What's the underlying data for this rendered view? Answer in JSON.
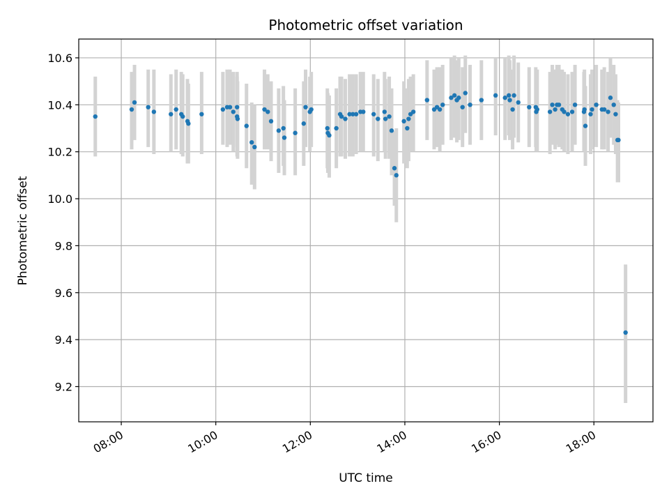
{
  "chart_data": {
    "type": "scatter",
    "title": "Photometric offset variation",
    "xlabel": "UTC time",
    "ylabel": "Photometric offset",
    "x_unit": "hours",
    "xlim": [
      7.1,
      19.25
    ],
    "ylim": [
      9.05,
      10.68
    ],
    "grid": true,
    "x_ticks": [
      {
        "value": 8,
        "label": "08:00"
      },
      {
        "value": 10,
        "label": "10:00"
      },
      {
        "value": 12,
        "label": "12:00"
      },
      {
        "value": 14,
        "label": "14:00"
      },
      {
        "value": 16,
        "label": "16:00"
      },
      {
        "value": 18,
        "label": "18:00"
      }
    ],
    "y_ticks": [
      {
        "value": 9.2,
        "label": "9.2"
      },
      {
        "value": 9.4,
        "label": "9.4"
      },
      {
        "value": 9.6,
        "label": "9.6"
      },
      {
        "value": 9.8,
        "label": "9.8"
      },
      {
        "value": 10.0,
        "label": "10.0"
      },
      {
        "value": 10.2,
        "label": "10.2"
      },
      {
        "value": 10.4,
        "label": "10.4"
      },
      {
        "value": 10.6,
        "label": "10.6"
      }
    ],
    "colors": {
      "point": "#1f77b4",
      "errorbar": "#d3d3d3",
      "grid": "#b0b0b0"
    },
    "series": [
      {
        "points": [
          [
            7.45,
            10.35,
            10.18,
            10.52
          ],
          [
            8.22,
            10.38,
            10.21,
            10.54
          ],
          [
            8.28,
            10.41,
            10.25,
            10.57
          ],
          [
            8.57,
            10.39,
            10.22,
            10.55
          ],
          [
            8.69,
            10.37,
            10.19,
            10.55
          ],
          [
            9.05,
            10.36,
            10.2,
            10.53
          ],
          [
            9.16,
            10.38,
            10.21,
            10.55
          ],
          [
            9.27,
            10.36,
            10.19,
            10.54
          ],
          [
            9.3,
            10.35,
            10.18,
            10.53
          ],
          [
            9.4,
            10.33,
            10.15,
            10.51
          ],
          [
            9.42,
            10.32,
            10.15,
            10.49
          ],
          [
            9.7,
            10.36,
            10.19,
            10.54
          ],
          [
            10.15,
            10.38,
            10.23,
            10.54
          ],
          [
            10.24,
            10.39,
            10.22,
            10.55
          ],
          [
            10.3,
            10.39,
            10.23,
            10.55
          ],
          [
            10.37,
            10.37,
            10.2,
            10.54
          ],
          [
            10.45,
            10.39,
            10.22,
            10.54
          ],
          [
            10.45,
            10.35,
            10.18,
            10.52
          ],
          [
            10.46,
            10.34,
            10.17,
            10.5
          ],
          [
            10.65,
            10.31,
            10.13,
            10.49
          ],
          [
            10.76,
            10.24,
            10.06,
            10.41
          ],
          [
            10.82,
            10.22,
            10.04,
            10.4
          ],
          [
            11.03,
            10.38,
            10.21,
            10.55
          ],
          [
            11.1,
            10.37,
            10.21,
            10.53
          ],
          [
            11.17,
            10.33,
            10.16,
            10.5
          ],
          [
            11.33,
            10.29,
            10.11,
            10.47
          ],
          [
            11.43,
            10.3,
            10.14,
            10.48
          ],
          [
            11.45,
            10.26,
            10.1,
            10.42
          ],
          [
            11.68,
            10.28,
            10.1,
            10.47
          ],
          [
            11.86,
            10.32,
            10.14,
            10.5
          ],
          [
            11.9,
            10.39,
            10.22,
            10.55
          ],
          [
            11.99,
            10.37,
            10.2,
            10.52
          ],
          [
            12.02,
            10.38,
            10.22,
            10.54
          ],
          [
            12.36,
            10.3,
            10.13,
            10.47
          ],
          [
            12.37,
            10.28,
            10.11,
            10.45
          ],
          [
            12.4,
            10.27,
            10.09,
            10.44
          ],
          [
            12.55,
            10.3,
            10.13,
            10.47
          ],
          [
            12.63,
            10.36,
            10.18,
            10.52
          ],
          [
            12.66,
            10.35,
            10.18,
            10.52
          ],
          [
            12.74,
            10.34,
            10.17,
            10.51
          ],
          [
            12.83,
            10.36,
            10.18,
            10.53
          ],
          [
            12.9,
            10.36,
            10.18,
            10.53
          ],
          [
            12.97,
            10.36,
            10.19,
            10.53
          ],
          [
            13.06,
            10.37,
            10.2,
            10.54
          ],
          [
            13.12,
            10.37,
            10.2,
            10.54
          ],
          [
            13.34,
            10.36,
            10.18,
            10.53
          ],
          [
            13.43,
            10.34,
            10.16,
            10.51
          ],
          [
            13.57,
            10.37,
            10.2,
            10.54
          ],
          [
            13.59,
            10.34,
            10.17,
            10.51
          ],
          [
            13.67,
            10.35,
            10.17,
            10.52
          ],
          [
            13.72,
            10.29,
            10.1,
            10.47
          ],
          [
            13.78,
            10.13,
            9.97,
            10.29
          ],
          [
            13.82,
            10.1,
            9.9,
            10.3
          ],
          [
            13.98,
            10.33,
            10.15,
            10.5
          ],
          [
            14.05,
            10.3,
            10.13,
            10.47
          ],
          [
            14.08,
            10.34,
            10.16,
            10.51
          ],
          [
            14.12,
            10.36,
            10.2,
            10.52
          ],
          [
            14.18,
            10.37,
            10.2,
            10.53
          ],
          [
            14.47,
            10.42,
            10.25,
            10.59
          ],
          [
            14.62,
            10.38,
            10.21,
            10.55
          ],
          [
            14.68,
            10.39,
            10.22,
            10.56
          ],
          [
            14.74,
            10.38,
            10.2,
            10.56
          ],
          [
            14.8,
            10.4,
            10.23,
            10.57
          ],
          [
            14.98,
            10.43,
            10.25,
            10.6
          ],
          [
            15.05,
            10.44,
            10.26,
            10.61
          ],
          [
            15.1,
            10.42,
            10.24,
            10.59
          ],
          [
            15.14,
            10.43,
            10.25,
            10.6
          ],
          [
            15.22,
            10.39,
            10.22,
            10.56
          ],
          [
            15.28,
            10.45,
            10.28,
            10.61
          ],
          [
            15.38,
            10.4,
            10.23,
            10.57
          ],
          [
            15.62,
            10.42,
            10.25,
            10.59
          ],
          [
            15.92,
            10.44,
            10.27,
            10.6
          ],
          [
            16.12,
            10.43,
            10.25,
            10.6
          ],
          [
            16.2,
            10.44,
            10.27,
            10.61
          ],
          [
            16.22,
            10.42,
            10.25,
            10.59
          ],
          [
            16.28,
            10.38,
            10.21,
            10.55
          ],
          [
            16.31,
            10.44,
            10.26,
            10.61
          ],
          [
            16.4,
            10.41,
            10.24,
            10.58
          ],
          [
            16.63,
            10.39,
            10.22,
            10.56
          ],
          [
            16.77,
            10.39,
            10.22,
            10.56
          ],
          [
            16.78,
            10.37,
            10.2,
            10.54
          ],
          [
            16.8,
            10.38,
            10.2,
            10.55
          ],
          [
            17.07,
            10.37,
            10.19,
            10.54
          ],
          [
            17.12,
            10.4,
            10.23,
            10.57
          ],
          [
            17.18,
            10.38,
            10.21,
            10.55
          ],
          [
            17.22,
            10.4,
            10.23,
            10.57
          ],
          [
            17.26,
            10.4,
            10.22,
            10.57
          ],
          [
            17.33,
            10.38,
            10.21,
            10.55
          ],
          [
            17.37,
            10.37,
            10.2,
            10.54
          ],
          [
            17.45,
            10.36,
            10.19,
            10.53
          ],
          [
            17.54,
            10.37,
            10.2,
            10.54
          ],
          [
            17.6,
            10.4,
            10.23,
            10.57
          ],
          [
            17.79,
            10.37,
            10.2,
            10.54
          ],
          [
            17.8,
            10.38,
            10.2,
            10.55
          ],
          [
            17.82,
            10.31,
            10.14,
            10.48
          ],
          [
            17.93,
            10.36,
            10.19,
            10.53
          ],
          [
            17.96,
            10.38,
            10.21,
            10.55
          ],
          [
            18.05,
            10.4,
            10.22,
            10.57
          ],
          [
            18.17,
            10.38,
            10.21,
            10.55
          ],
          [
            18.22,
            10.38,
            10.21,
            10.56
          ],
          [
            18.3,
            10.37,
            10.2,
            10.54
          ],
          [
            18.35,
            10.43,
            10.26,
            10.6
          ],
          [
            18.42,
            10.4,
            10.23,
            10.57
          ],
          [
            18.46,
            10.36,
            10.19,
            10.53
          ],
          [
            18.5,
            10.25,
            10.07,
            10.42
          ],
          [
            18.52,
            10.25,
            10.07,
            10.41
          ],
          [
            18.67,
            9.43,
            9.13,
            9.72
          ]
        ]
      }
    ]
  }
}
